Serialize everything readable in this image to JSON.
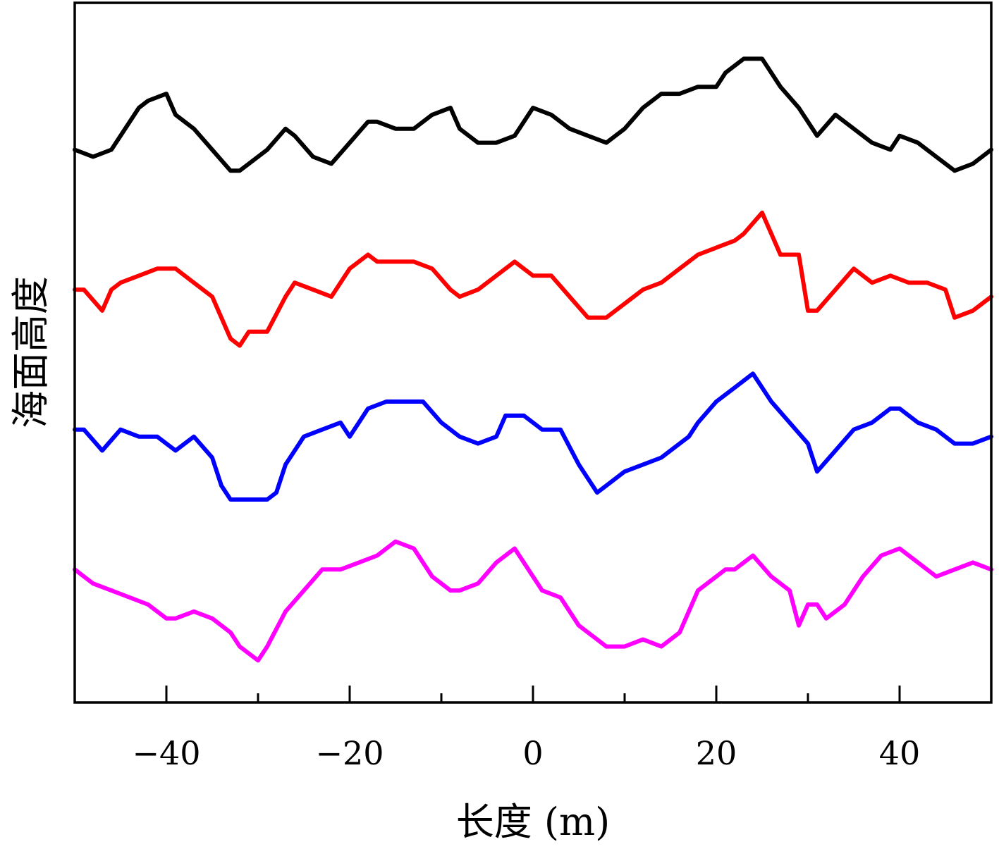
{
  "chart_data": {
    "type": "line",
    "xlabel": "长度 (m)",
    "ylabel": "海面高度",
    "xlim": [
      -50,
      50
    ],
    "ylim": [
      0,
      100
    ],
    "xticks": [
      -40,
      -20,
      0,
      20,
      40
    ],
    "xtick_labels": [
      "−40",
      "−20",
      "0",
      "20",
      "40"
    ],
    "minor_xticks": [
      -30,
      -10,
      10,
      30
    ],
    "yticks": [],
    "grid": false,
    "legend": "none",
    "series": [
      {
        "color": "#000000",
        "x": [
          -50,
          -48,
          -46,
          -45,
          -43,
          -42,
          -40,
          -39,
          -37,
          -35,
          -33,
          -32,
          -31,
          -29,
          -27,
          -26,
          -24,
          -22,
          -20,
          -18,
          -17,
          -15,
          -13,
          -11,
          -9,
          -8,
          -6,
          -4,
          -2,
          0,
          2,
          4,
          6,
          8,
          10,
          12,
          14,
          16,
          18,
          20,
          21,
          23,
          25,
          27,
          29,
          31,
          33,
          35,
          37,
          39,
          40,
          42,
          44,
          46,
          48,
          50
        ],
        "y": [
          79,
          78,
          79,
          81,
          85,
          86,
          87,
          84,
          82,
          79,
          76,
          76,
          77,
          79,
          82,
          81,
          78,
          77,
          80,
          83,
          83,
          82,
          82,
          84,
          85,
          82,
          80,
          80,
          81,
          85,
          84,
          82,
          81,
          80,
          82,
          85,
          87,
          87,
          88,
          88,
          90,
          92,
          92,
          88,
          85,
          81,
          84,
          82,
          80,
          79,
          81,
          80,
          78,
          76,
          77,
          79
        ]
      },
      {
        "color": "#ff0000",
        "x": [
          -50,
          -49,
          -47,
          -46,
          -45,
          -43,
          -41,
          -39,
          -37,
          -35,
          -34,
          -33,
          -32,
          -31,
          -29,
          -27,
          -26,
          -24,
          -22,
          -20,
          -18,
          -17,
          -15,
          -13,
          -11,
          -9,
          -8,
          -6,
          -4,
          -2,
          0,
          2,
          4,
          6,
          8,
          10,
          12,
          14,
          16,
          18,
          20,
          22,
          23,
          25,
          27,
          29,
          30,
          31,
          33,
          35,
          37,
          39,
          41,
          43,
          45,
          46,
          48,
          50
        ],
        "y": [
          59,
          59,
          56,
          59,
          60,
          61,
          62,
          62,
          60,
          58,
          55,
          52,
          51,
          53,
          53,
          58,
          60,
          59,
          58,
          62,
          64,
          63,
          63,
          63,
          62,
          59,
          58,
          59,
          61,
          63,
          61,
          61,
          58,
          55,
          55,
          57,
          59,
          60,
          62,
          64,
          65,
          66,
          67,
          70,
          64,
          64,
          56,
          56,
          59,
          62,
          60,
          61,
          60,
          60,
          59,
          55,
          56,
          58
        ]
      },
      {
        "color": "#0000ff",
        "x": [
          -50,
          -49,
          -47,
          -45,
          -43,
          -41,
          -39,
          -37,
          -35,
          -34,
          -33,
          -31,
          -29,
          -28,
          -27,
          -25,
          -23,
          -21,
          -20,
          -18,
          -16,
          -15,
          -13,
          -12,
          -10,
          -8,
          -6,
          -4,
          -3,
          -1,
          1,
          3,
          5,
          7,
          8,
          10,
          12,
          14,
          16,
          17,
          18,
          20,
          22,
          24,
          26,
          28,
          30,
          31,
          33,
          35,
          37,
          39,
          40,
          42,
          44,
          46,
          48,
          50
        ],
        "y": [
          39,
          39,
          36,
          39,
          38,
          38,
          36,
          38,
          35,
          31,
          29,
          29,
          29,
          30,
          34,
          38,
          39,
          40,
          38,
          42,
          43,
          43,
          43,
          43,
          40,
          38,
          37,
          38,
          41,
          41,
          39,
          39,
          34,
          30,
          31,
          33,
          34,
          35,
          37,
          38,
          40,
          43,
          45,
          47,
          43,
          40,
          37,
          33,
          36,
          39,
          40,
          42,
          42,
          40,
          39,
          37,
          37,
          38
        ]
      },
      {
        "color": "#ff00ff",
        "x": [
          -50,
          -48,
          -46,
          -44,
          -42,
          -40,
          -39,
          -37,
          -35,
          -33,
          -32,
          -31,
          -30,
          -29,
          -27,
          -25,
          -23,
          -21,
          -19,
          -17,
          -15,
          -13,
          -11,
          -9,
          -8,
          -6,
          -4,
          -2,
          -1,
          1,
          3,
          5,
          7,
          8,
          10,
          12,
          14,
          16,
          18,
          20,
          21,
          22,
          24,
          26,
          28,
          29,
          30,
          31,
          32,
          34,
          36,
          38,
          40,
          42,
          44,
          46,
          48,
          50
        ],
        "y": [
          19,
          17,
          16,
          15,
          14,
          12,
          12,
          13,
          12,
          10,
          8,
          7,
          6,
          8,
          13,
          16,
          19,
          19,
          20,
          21,
          23,
          22,
          18,
          16,
          16,
          17,
          20,
          22,
          20,
          16,
          15,
          11,
          9,
          8,
          8,
          9,
          8,
          10,
          16,
          18,
          19,
          19,
          21,
          18,
          16,
          11,
          14,
          14,
          12,
          14,
          18,
          21,
          22,
          20,
          18,
          19,
          20,
          19
        ]
      }
    ]
  }
}
